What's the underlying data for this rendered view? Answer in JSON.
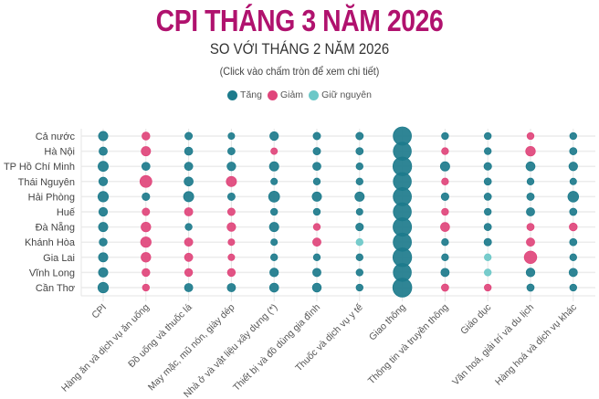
{
  "header": {
    "title": "CPI THÁNG 3 NĂM 2026",
    "subtitle": "SO VỚI THÁNG 2 NĂM 2026",
    "note": "(Click vào chấm tròn để xem chi tiết)"
  },
  "legend": [
    {
      "label": "Tăng",
      "color": "#1d7b8c"
    },
    {
      "label": "Giảm",
      "color": "#e0457b"
    },
    {
      "label": "Giữ nguyên",
      "color": "#6cc8c8"
    }
  ],
  "chart_data": {
    "type": "scatter",
    "title": "CPI THÁNG 3 NĂM 2026",
    "subtitle": "SO VỚI THÁNG 2 NĂM 2026",
    "encoding": "dot size = magnitude of change (relative, unlabeled); dot color = direction",
    "colors": {
      "tang": "#1d7b8c",
      "giam": "#e0457b",
      "giu_nguyen": "#6cc8c8"
    },
    "rows": [
      "Cả nước",
      "Hà Nội",
      "TP Hồ Chí Minh",
      "Thái Nguyên",
      "Hải Phòng",
      "Huế",
      "Đà Nẵng",
      "Khánh Hòa",
      "Gia Lai",
      "Vĩnh Long",
      "Cần Thơ"
    ],
    "columns": [
      "CPI",
      "Hàng ăn và dịch vụ ăn uống",
      "Đồ uống và thuốc lá",
      "May mặc, mũ nón, giày dép",
      "Nhà ở và vật liệu xây dựng (*)",
      "Thiết bị và đồ dùng gia đình",
      "Thuốc và dịch vụ y tế",
      "Giao thông",
      "Thông tin và truyền thông",
      "Giáo dục",
      "Văn hoá, giải trí và du lịch",
      "Hàng hoá và dịch vụ khác"
    ],
    "grid": true,
    "legend_position": "top-center",
    "cells": [
      [
        [
          "tang",
          0.45
        ],
        [
          "giam",
          0.25
        ],
        [
          "tang",
          0.2
        ],
        [
          "tang",
          0.12
        ],
        [
          "tang",
          0.35
        ],
        [
          "tang",
          0.2
        ],
        [
          "tang",
          0.2
        ],
        [
          "tang",
          3.0
        ],
        [
          "tang",
          0.15
        ],
        [
          "tang",
          0.15
        ],
        [
          "giam",
          0.15
        ],
        [
          "tang",
          0.15
        ]
      ],
      [
        [
          "tang",
          0.3
        ],
        [
          "giam",
          0.45
        ],
        [
          "tang",
          0.28
        ],
        [
          "tang",
          0.18
        ],
        [
          "giam",
          0.12
        ],
        [
          "tang",
          0.2
        ],
        [
          "tang",
          0.18
        ],
        [
          "tang",
          2.9
        ],
        [
          "giam",
          0.15
        ],
        [
          "tang",
          0.15
        ],
        [
          "giam",
          0.5
        ],
        [
          "tang",
          0.18
        ]
      ],
      [
        [
          "tang",
          0.6
        ],
        [
          "tang",
          0.28
        ],
        [
          "tang",
          0.3
        ],
        [
          "tang",
          0.35
        ],
        [
          "tang",
          0.45
        ],
        [
          "tang",
          0.28
        ],
        [
          "tang",
          0.15
        ],
        [
          "tang",
          3.2
        ],
        [
          "tang",
          0.45
        ],
        [
          "tang",
          0.22
        ],
        [
          "tang",
          0.4
        ],
        [
          "tang",
          0.35
        ]
      ],
      [
        [
          "tang",
          0.35
        ],
        [
          "giam",
          0.95
        ],
        [
          "tang",
          0.4
        ],
        [
          "giam",
          0.6
        ],
        [
          "tang",
          0.12
        ],
        [
          "tang",
          0.15
        ],
        [
          "tang",
          0.15
        ],
        [
          "tang",
          2.9
        ],
        [
          "giam",
          0.15
        ],
        [
          "tang",
          0.18
        ],
        [
          "tang",
          0.15
        ],
        [
          "tang",
          0.12
        ]
      ],
      [
        [
          "tang",
          0.65
        ],
        [
          "tang",
          0.22
        ],
        [
          "tang",
          0.6
        ],
        [
          "tang",
          0.2
        ],
        [
          "tang",
          0.75
        ],
        [
          "tang",
          0.45
        ],
        [
          "tang",
          0.45
        ],
        [
          "tang",
          3.0
        ],
        [
          "tang",
          0.22
        ],
        [
          "tang",
          0.18
        ],
        [
          "tang",
          0.2
        ],
        [
          "tang",
          0.7
        ]
      ],
      [
        [
          "tang",
          0.35
        ],
        [
          "giam",
          0.2
        ],
        [
          "giam",
          0.3
        ],
        [
          "giam",
          0.2
        ],
        [
          "tang",
          0.15
        ],
        [
          "tang",
          0.15
        ],
        [
          "tang",
          0.12
        ],
        [
          "tang",
          2.9
        ],
        [
          "giam",
          0.15
        ],
        [
          "tang",
          0.15
        ],
        [
          "tang",
          0.3
        ],
        [
          "tang",
          0.18
        ]
      ],
      [
        [
          "tang",
          0.45
        ],
        [
          "giam",
          0.5
        ],
        [
          "tang",
          0.15
        ],
        [
          "giam",
          0.35
        ],
        [
          "tang",
          0.45
        ],
        [
          "giam",
          0.15
        ],
        [
          "tang",
          0.22
        ],
        [
          "tang",
          3.1
        ],
        [
          "giam",
          0.4
        ],
        [
          "tang",
          0.18
        ],
        [
          "giam",
          0.18
        ],
        [
          "giam",
          0.25
        ]
      ],
      [
        [
          "tang",
          0.25
        ],
        [
          "giam",
          0.65
        ],
        [
          "giam",
          0.3
        ],
        [
          "giam",
          0.12
        ],
        [
          "tang",
          0.12
        ],
        [
          "giam",
          0.3
        ],
        [
          "giu_nguyen",
          0.15
        ],
        [
          "tang",
          3.0
        ],
        [
          "tang",
          0.15
        ],
        [
          "tang",
          0.2
        ],
        [
          "giam",
          0.3
        ],
        [
          "tang",
          0.18
        ]
      ],
      [
        [
          "tang",
          0.45
        ],
        [
          "giam",
          0.5
        ],
        [
          "giam",
          0.3
        ],
        [
          "giam",
          0.12
        ],
        [
          "tang",
          0.15
        ],
        [
          "tang",
          0.15
        ],
        [
          "tang",
          0.15
        ],
        [
          "tang",
          3.2
        ],
        [
          "tang",
          0.15
        ],
        [
          "giu_nguyen",
          0.15
        ],
        [
          "giam",
          1.1
        ],
        [
          "tang",
          0.15
        ]
      ],
      [
        [
          "tang",
          0.45
        ],
        [
          "giam",
          0.25
        ],
        [
          "giam",
          0.25
        ],
        [
          "giam",
          0.25
        ],
        [
          "tang",
          0.35
        ],
        [
          "tang",
          0.3
        ],
        [
          "tang",
          0.15
        ],
        [
          "tang",
          2.9
        ],
        [
          "tang",
          0.3
        ],
        [
          "giu_nguyen",
          0.15
        ],
        [
          "tang",
          0.35
        ],
        [
          "tang",
          0.3
        ]
      ],
      [
        [
          "tang",
          0.65
        ],
        [
          "giam",
          0.15
        ],
        [
          "tang",
          0.3
        ],
        [
          "tang",
          0.3
        ],
        [
          "tang",
          0.4
        ],
        [
          "tang",
          0.38
        ],
        [
          "tang",
          0.15
        ],
        [
          "tang",
          3.3
        ],
        [
          "giam",
          0.18
        ],
        [
          "giam",
          0.15
        ],
        [
          "tang",
          0.18
        ],
        [
          "tang",
          0.15
        ]
      ]
    ]
  }
}
